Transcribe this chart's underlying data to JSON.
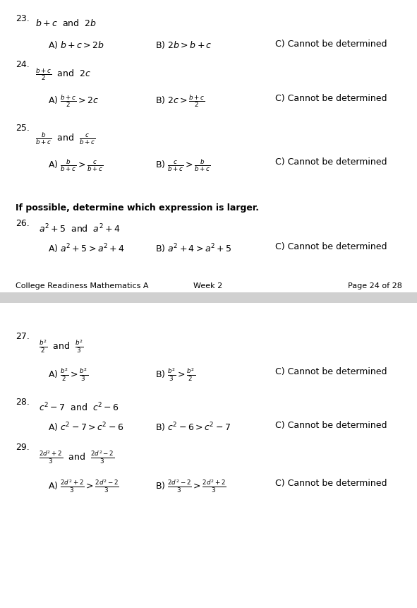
{
  "bg_color": "#ffffff",
  "divider_color": "#bbbbbb",
  "figsize": [
    5.91,
    8.62
  ],
  "dpi": 100,
  "footer_left": "College Readiness Mathematics A",
  "footer_center": "Week 2",
  "footer_right": "Page 24 of 28"
}
